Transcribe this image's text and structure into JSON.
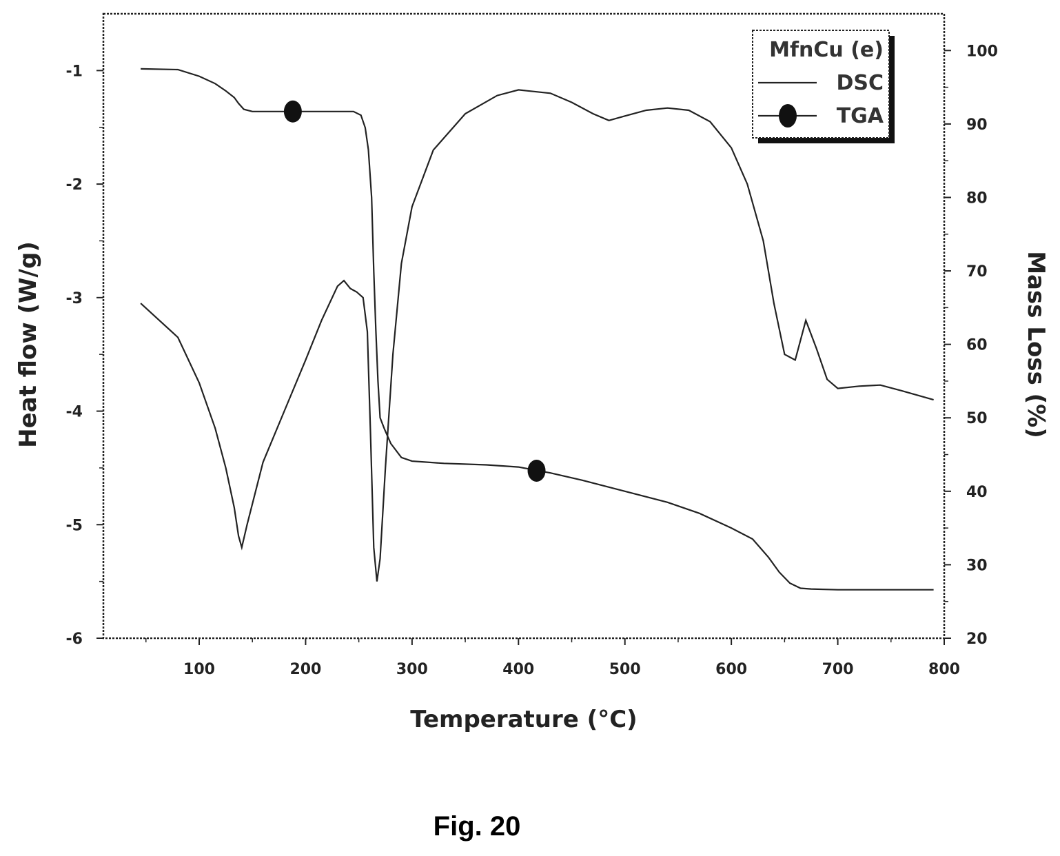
{
  "figure_caption": "Fig. 20",
  "chart_data": {
    "type": "line",
    "xlabel": "Temperature (°C)",
    "ylabel": "Heat flow (W/g)",
    "y2label": "Mass Loss (%)",
    "xlim": [
      10,
      800
    ],
    "ylim": [
      -6,
      -0.5
    ],
    "y2lim": [
      20,
      105
    ],
    "xticks": [
      100,
      200,
      300,
      400,
      500,
      600,
      700,
      800
    ],
    "yticks": [
      -1,
      -2,
      -3,
      -4,
      -5,
      -6
    ],
    "y2ticks": [
      100,
      90,
      80,
      70,
      60,
      50,
      40,
      30,
      20
    ],
    "xtick_labels": [
      "100",
      "200",
      "300",
      "400",
      "500",
      "600",
      "700",
      "800"
    ],
    "ytick_labels": [
      "-1",
      "-2",
      "-3",
      "-4",
      "-5",
      "-6"
    ],
    "y2tick_labels": [
      "100",
      "90",
      "80",
      "70",
      "60",
      "50",
      "40",
      "30",
      "20"
    ],
    "grid": false,
    "legend": {
      "position": "top-right",
      "title": "MfnCu (e)",
      "entries": [
        "DSC",
        "TGA"
      ]
    },
    "series": [
      {
        "name": "DSC",
        "axis": "left",
        "x": [
          45,
          80,
          100,
          115,
          125,
          133,
          137,
          140,
          145,
          160,
          180,
          200,
          215,
          230,
          236,
          242,
          248,
          254,
          258,
          261,
          264,
          267,
          270,
          275,
          282,
          290,
          300,
          320,
          350,
          380,
          400,
          430,
          450,
          470,
          485,
          500,
          520,
          540,
          560,
          580,
          600,
          615,
          630,
          640,
          650,
          660,
          670,
          680,
          690,
          700,
          720,
          740,
          760,
          790
        ],
        "values": [
          -3.05,
          -3.35,
          -3.75,
          -4.15,
          -4.5,
          -4.85,
          -5.1,
          -5.2,
          -5.0,
          -4.45,
          -4.0,
          -3.55,
          -3.2,
          -2.9,
          -2.85,
          -2.92,
          -2.95,
          -3.0,
          -3.3,
          -4.2,
          -5.2,
          -5.5,
          -5.3,
          -4.5,
          -3.5,
          -2.7,
          -2.2,
          -1.7,
          -1.38,
          -1.22,
          -1.17,
          -1.2,
          -1.28,
          -1.38,
          -1.44,
          -1.4,
          -1.35,
          -1.33,
          -1.35,
          -1.45,
          -1.68,
          -2.0,
          -2.5,
          -3.05,
          -3.5,
          -3.55,
          -3.2,
          -3.45,
          -3.72,
          -3.8,
          -3.78,
          -3.77,
          -3.82,
          -3.9
        ]
      },
      {
        "name": "TGA",
        "axis": "right",
        "x": [
          45,
          80,
          100,
          115,
          125,
          133,
          137,
          142,
          150,
          170,
          200,
          230,
          245,
          252,
          256,
          259,
          262,
          264,
          266,
          268,
          270,
          274,
          280,
          290,
          300,
          330,
          370,
          400,
          430,
          460,
          500,
          540,
          570,
          600,
          620,
          635,
          645,
          655,
          665,
          675,
          700,
          750,
          790
        ],
        "values": [
          97.5,
          97.4,
          96.5,
          95.5,
          94.5,
          93.6,
          92.8,
          92,
          91.7,
          91.7,
          91.7,
          91.7,
          91.7,
          91.2,
          89.5,
          86.5,
          80,
          70,
          62,
          55,
          50,
          48.5,
          46.5,
          44.6,
          44.1,
          43.8,
          43.6,
          43.3,
          42.5,
          41.5,
          40,
          38.5,
          37,
          35,
          33.5,
          31,
          29,
          27.5,
          26.8,
          26.7,
          26.6,
          26.6,
          26.6
        ]
      }
    ],
    "markers": [
      {
        "series": "TGA",
        "x": 188,
        "y": 91.7
      },
      {
        "series": "TGA",
        "x": 417,
        "y": 42.8
      }
    ]
  }
}
